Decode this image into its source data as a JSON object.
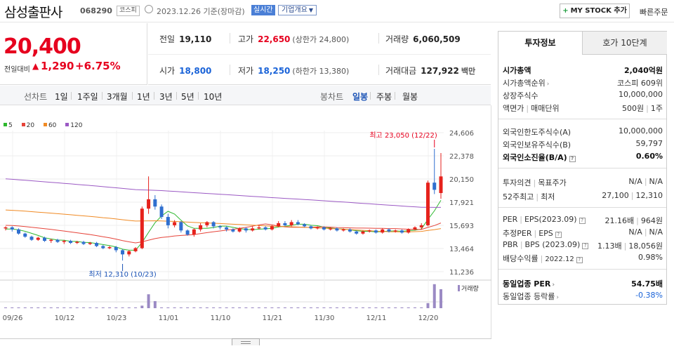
{
  "header": {
    "company_name": "삼성출판사",
    "code": "068290",
    "market": "코스피",
    "date_info": "2023.12.26 기준(장마감)",
    "realtime_label": "실시간",
    "corp_overview_label": "기업개요",
    "mystock_label": "MY STOCK 추가",
    "quick_order_label": "빠른주문"
  },
  "price": {
    "current": "20,400",
    "change_label": "전일대비",
    "change": "1,290",
    "change_pct": "+6.75%"
  },
  "stats": {
    "prev_close_label": "전일",
    "prev_close": "19,110",
    "high_label": "고가",
    "high": "22,650",
    "upper_limit": "(상한가 24,800)",
    "volume_label": "거래량",
    "volume": "6,060,509",
    "open_label": "시가",
    "open": "18,800",
    "low_label": "저가",
    "low": "18,250",
    "lower_limit": "(하한가 13,380)",
    "trade_value_label": "거래대금",
    "trade_value": "127,922",
    "trade_value_unit": "백만"
  },
  "period_bar": {
    "line_label": "선차트",
    "line_periods": [
      "1일",
      "1주일",
      "3개월",
      "1년",
      "3년",
      "5년",
      "10년"
    ],
    "candle_label": "봉차트",
    "candle_periods": [
      "일봉",
      "주봉",
      "월봉"
    ],
    "active_candle": "일봉"
  },
  "chart_data": {
    "type": "candlestick",
    "legend": [
      {
        "name": "5",
        "color": "#2eb82e"
      },
      {
        "name": "20",
        "color": "#e6443a"
      },
      {
        "name": "60",
        "color": "#f08a24"
      },
      {
        "name": "120",
        "color": "#9b59c4"
      }
    ],
    "y_ticks": [
      "24,606",
      "22,378",
      "20,150",
      "17,921",
      "15,693",
      "13,464",
      "11,236"
    ],
    "ylim": [
      11236,
      24606
    ],
    "x_ticks": [
      "09/26",
      "10/12",
      "10/23",
      "11/01",
      "11/10",
      "11/21",
      "11/30",
      "12/11",
      "12/20"
    ],
    "high_annotation": "최고 23,050 (12/22)",
    "low_annotation": "최저 12,310 (10/23)",
    "volume_label": "거래량",
    "colors": {
      "up": "#e6221c",
      "down": "#2f6fcf"
    }
  },
  "sidebar": {
    "tab_invest": "투자정보",
    "tab_orderbook": "호가 10단계",
    "market_cap_label": "시가총액",
    "market_cap": "2,040억원",
    "market_cap_rank_label": "시가총액순위",
    "market_cap_rank": "코스피 609위",
    "shares_label": "상장주식수",
    "shares": "10,000,000",
    "par_label": "액면가",
    "unit_label": "매매단위",
    "par_value": "500원",
    "unit_value": "1주",
    "foreign_limit_label": "외국인한도주식수(A)",
    "foreign_limit": "10,000,000",
    "foreign_hold_label": "외국인보유주식수(B)",
    "foreign_hold": "59,797",
    "foreign_ratio_label": "외국인소진율(B/A)",
    "foreign_ratio": "0.60%",
    "opinion_label": "투자의견",
    "target_label": "목표주가",
    "opinion_value": "N/A",
    "target_value": "N/A",
    "wk52_high_label": "52주최고",
    "wk52_low_label": "최저",
    "wk52_high": "27,100",
    "wk52_low": "12,310",
    "per_label": "PER",
    "eps_label": "EPS(2023.09)",
    "per_value": "21.16배",
    "eps_value": "964원",
    "est_per_label": "추정PER",
    "est_eps_label": "EPS",
    "est_per_value": "N/A",
    "est_eps_value": "N/A",
    "pbr_label": "PBR",
    "bps_label": "BPS (2023.09)",
    "pbr_value": "1.13배",
    "bps_value": "18,056원",
    "div_label": "배당수익률",
    "div_date": "2022.12",
    "div_value": "0.98%",
    "sector_per_label": "동일업종 PER",
    "sector_per": "54.75배",
    "sector_chg_label": "동일업종 등락률",
    "sector_chg": "-0.38%"
  }
}
